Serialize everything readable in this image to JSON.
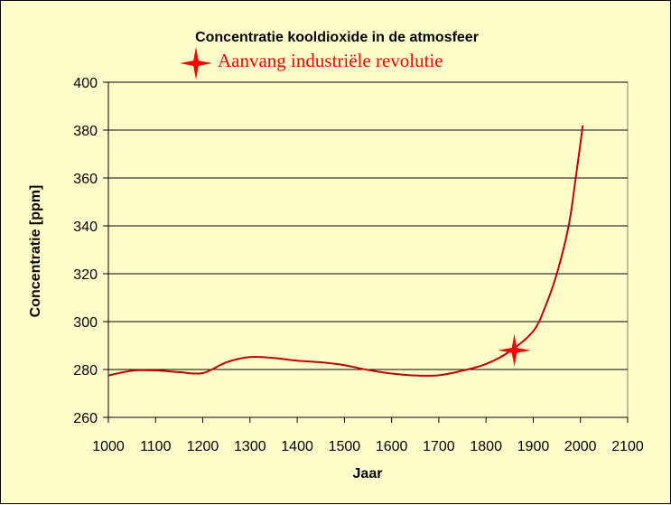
{
  "chart_data": {
    "type": "line",
    "title": "Concentratie kooldioxide in de atmosfeer",
    "xlabel": "Jaar",
    "ylabel": "Concentratie  [ppm]",
    "xlim": [
      1000,
      2100
    ],
    "ylim": [
      260,
      400
    ],
    "xticks": [
      1000,
      1100,
      1200,
      1300,
      1400,
      1500,
      1600,
      1700,
      1800,
      1900,
      2000,
      2100
    ],
    "yticks": [
      260,
      280,
      300,
      320,
      340,
      360,
      380,
      400
    ],
    "grid": "horizontal",
    "colors": {
      "background": "#ffffcc",
      "plot_area": "#ffffcc",
      "line": "#c00000",
      "marker": "#ff0000",
      "legend_text": "#ff0000"
    },
    "series": [
      {
        "x": [
          1000,
          1050,
          1100,
          1150,
          1200,
          1250,
          1300,
          1350,
          1400,
          1450,
          1500,
          1550,
          1600,
          1650,
          1700,
          1750,
          1800,
          1850,
          1900,
          1925,
          1950,
          1975,
          1990,
          2005
        ],
        "y": [
          277.5,
          279.5,
          279.6,
          278.9,
          278.5,
          283,
          285.2,
          284.8,
          283.7,
          283,
          281.8,
          279.8,
          278.3,
          277.5,
          277.6,
          279.5,
          282.3,
          287.5,
          296,
          306,
          320,
          340,
          360,
          382
        ]
      }
    ],
    "markers": [
      {
        "x": 1860,
        "y": 288,
        "shape": "four-point-star",
        "legend": "Aanvang industriële revolutie"
      }
    ]
  }
}
